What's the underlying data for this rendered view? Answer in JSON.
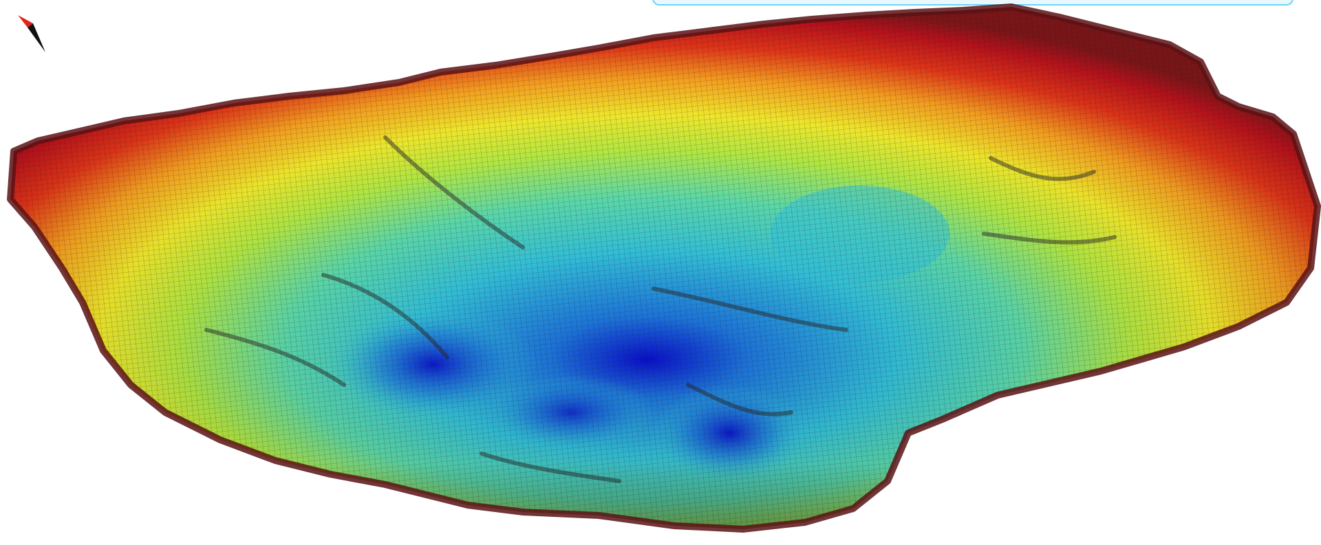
{
  "viewer": {
    "colormap": [
      "#0a10d8",
      "#1f7be6",
      "#35c8e2",
      "#5fe0b0",
      "#b7ee44",
      "#f4ec2c",
      "#f7a020",
      "#e03418",
      "#b5111b",
      "#7a1518"
    ],
    "background": "#ffffff",
    "compass": {
      "icon": "north-arrow-icon",
      "north_color": "#e4211b",
      "south_color": "#111111"
    }
  }
}
